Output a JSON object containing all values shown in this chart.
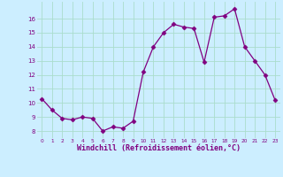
{
  "x": [
    0,
    1,
    2,
    3,
    4,
    5,
    6,
    7,
    8,
    9,
    10,
    11,
    12,
    13,
    14,
    15,
    16,
    17,
    18,
    19,
    20,
    21,
    22,
    23
  ],
  "y": [
    10.3,
    9.5,
    8.9,
    8.8,
    9.0,
    8.9,
    8.0,
    8.3,
    8.2,
    8.7,
    12.2,
    14.0,
    15.0,
    15.6,
    15.4,
    15.3,
    12.9,
    16.1,
    16.2,
    16.7,
    14.0,
    13.0,
    12.0,
    10.2
  ],
  "line_color": "#800080",
  "marker": "D",
  "marker_size": 2.5,
  "bg_color": "#cceeff",
  "grid_color": "#aaddcc",
  "xlabel": "Windchill (Refroidissement éolien,°C)",
  "xlabel_color": "#800080",
  "tick_color": "#800080",
  "ylim": [
    7.5,
    17.2
  ],
  "xlim": [
    -0.5,
    23.5
  ],
  "yticks": [
    8,
    9,
    10,
    11,
    12,
    13,
    14,
    15,
    16
  ],
  "xticks": [
    0,
    1,
    2,
    3,
    4,
    5,
    6,
    7,
    8,
    9,
    10,
    11,
    12,
    13,
    14,
    15,
    16,
    17,
    18,
    19,
    20,
    21,
    22,
    23
  ],
  "xlabel_fontsize": 6.0,
  "xtick_fontsize": 4.2,
  "ytick_fontsize": 5.0
}
